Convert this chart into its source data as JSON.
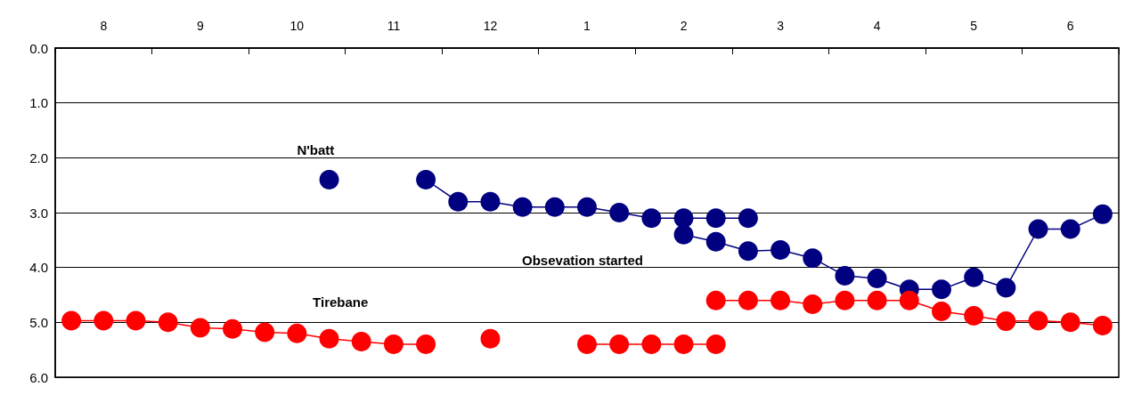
{
  "chart_data": {
    "type": "line",
    "categories": [
      null,
      "8",
      null,
      null,
      "9",
      null,
      null,
      "10",
      null,
      null,
      "11",
      null,
      null,
      "12",
      null,
      null,
      "1",
      null,
      null,
      "2",
      null,
      null,
      "3",
      null,
      null,
      "4",
      null,
      null,
      "5",
      null,
      null,
      "6",
      null
    ],
    "ylim": [
      6,
      0
    ],
    "yticks": [
      {
        "value": 0,
        "label": "0.0"
      },
      {
        "value": 1,
        "label": "1.0"
      },
      {
        "value": 2,
        "label": "2.0"
      },
      {
        "value": 3,
        "label": "3.0"
      },
      {
        "value": 4,
        "label": "4.0"
      },
      {
        "value": 5,
        "label": "5.0"
      },
      {
        "value": 6,
        "label": "6.0"
      }
    ],
    "grid": "y",
    "marker": "circle",
    "line_style": "solid",
    "annotations": [
      "N'batt",
      "Obsevation started",
      "Tirebane"
    ],
    "series": [
      {
        "color": "#000080",
        "values": [
          null,
          null,
          null,
          null,
          null,
          null,
          null,
          null,
          2.4,
          null,
          null,
          2.4,
          2.8,
          2.8,
          2.9,
          2.9,
          2.9,
          3.0,
          3.1,
          3.1,
          3.1,
          3.1,
          null,
          null,
          null,
          null,
          null,
          null,
          null,
          null,
          null,
          null,
          null
        ]
      },
      {
        "color": "#000080",
        "values": [
          null,
          null,
          null,
          null,
          null,
          null,
          null,
          null,
          null,
          null,
          null,
          null,
          null,
          null,
          null,
          null,
          null,
          null,
          null,
          3.4,
          3.53,
          3.7,
          3.68,
          3.83,
          4.15,
          4.2,
          4.4,
          4.4,
          4.18,
          4.37,
          3.3,
          3.3,
          3.03
        ]
      },
      {
        "color": "#ff0000",
        "values": [
          4.97,
          4.97,
          4.97,
          5.0,
          5.1,
          5.12,
          5.18,
          5.2,
          5.3,
          5.35,
          5.4,
          5.4,
          null,
          5.3,
          null,
          null,
          5.4,
          5.4,
          5.4,
          5.4,
          5.4,
          null,
          null,
          null,
          null,
          null,
          null,
          null,
          null,
          null,
          null,
          null,
          null
        ]
      },
      {
        "color": "#ff0000",
        "values": [
          null,
          null,
          null,
          null,
          null,
          null,
          null,
          null,
          null,
          null,
          null,
          null,
          null,
          null,
          null,
          null,
          null,
          null,
          null,
          null,
          4.6,
          4.6,
          4.6,
          4.67,
          4.6,
          4.6,
          4.6,
          4.8,
          4.88,
          4.98,
          4.97,
          5.0,
          5.06
        ]
      }
    ]
  }
}
